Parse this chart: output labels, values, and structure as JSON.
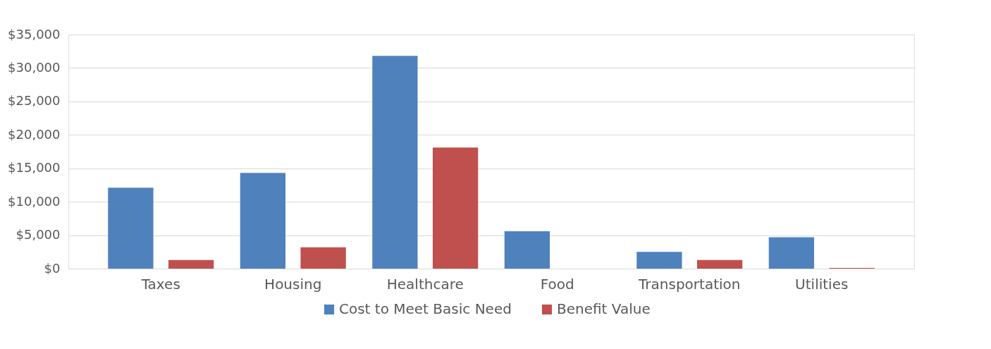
{
  "chart_data": {
    "type": "bar",
    "categories": [
      "Taxes",
      "Housing",
      "Healthcare",
      "Food",
      "Transportation",
      "Utilities"
    ],
    "series": [
      {
        "name": "Cost to Meet Basic Need",
        "color": "#4f81bd",
        "values": [
          12100,
          14300,
          31800,
          5600,
          2500,
          4700
        ]
      },
      {
        "name": "Benefit Value",
        "color": "#c0504d",
        "values": [
          1300,
          3200,
          18100,
          0,
          1300,
          100
        ]
      }
    ],
    "ylim": [
      0,
      35000
    ],
    "yticks": [
      {
        "value": 0,
        "label": "$0"
      },
      {
        "value": 5000,
        "label": "$5,000"
      },
      {
        "value": 10000,
        "label": "$10,000"
      },
      {
        "value": 15000,
        "label": "$15,000"
      },
      {
        "value": 20000,
        "label": "$20,000"
      },
      {
        "value": 25000,
        "label": "$25,000"
      },
      {
        "value": 30000,
        "label": "$30,000"
      },
      {
        "value": 35000,
        "label": "$35,000"
      }
    ],
    "grid": "y",
    "legend": "bottom"
  }
}
